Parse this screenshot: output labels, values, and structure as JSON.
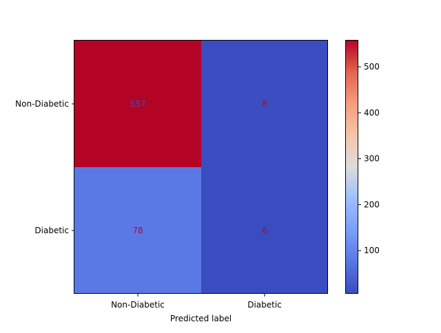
{
  "chart_data": {
    "type": "heatmap",
    "title": "",
    "xlabel": "Predicted label",
    "ylabel": "",
    "x_categories": [
      "Non-Diabetic",
      "Diabetic"
    ],
    "y_categories": [
      "Non-Diabetic",
      "Diabetic"
    ],
    "values": [
      [
        557,
        8
      ],
      [
        78,
        6
      ]
    ],
    "colormap": "coolwarm",
    "color_range": [
      6,
      557
    ],
    "colorbar_ticks": [
      100,
      200,
      300,
      400,
      500
    ],
    "cell_text_colors": [
      [
        "#3b4cc0",
        "#b40426"
      ],
      [
        "#b40426",
        "#b40426"
      ]
    ],
    "grid": false
  }
}
